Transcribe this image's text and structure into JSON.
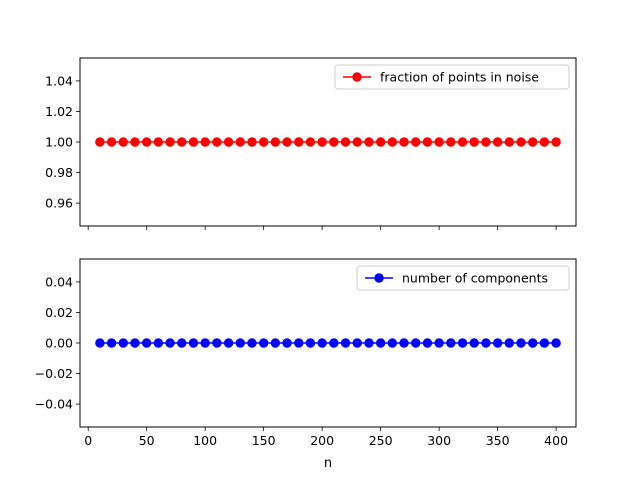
{
  "chart_data": {
    "type": "line",
    "x": [
      10,
      20,
      30,
      40,
      50,
      60,
      70,
      80,
      90,
      100,
      110,
      120,
      130,
      140,
      150,
      160,
      170,
      180,
      190,
      200,
      210,
      220,
      230,
      240,
      250,
      260,
      270,
      280,
      290,
      300,
      310,
      320,
      330,
      340,
      350,
      360,
      370,
      380,
      390,
      400
    ],
    "xlabel": "n",
    "xlim": [
      -7,
      417
    ],
    "xticks": [
      0,
      50,
      100,
      150,
      200,
      250,
      300,
      350,
      400
    ],
    "xtick_labels": [
      "0",
      "50",
      "100",
      "150",
      "200",
      "250",
      "300",
      "350",
      "400"
    ],
    "subplots": [
      {
        "series": [
          {
            "name": "fraction of points in noise",
            "color": "#ff0000",
            "marker": "circle",
            "values": [
              1,
              1,
              1,
              1,
              1,
              1,
              1,
              1,
              1,
              1,
              1,
              1,
              1,
              1,
              1,
              1,
              1,
              1,
              1,
              1,
              1,
              1,
              1,
              1,
              1,
              1,
              1,
              1,
              1,
              1,
              1,
              1,
              1,
              1,
              1,
              1,
              1,
              1,
              1,
              1
            ]
          }
        ],
        "ylim": [
          0.945,
          1.055
        ],
        "yticks": [
          0.96,
          0.98,
          1.0,
          1.02,
          1.04
        ],
        "ytick_labels": [
          "0.96",
          "0.98",
          "1.00",
          "1.02",
          "1.04"
        ],
        "legend": "top-right",
        "show_xtick_labels": false
      },
      {
        "series": [
          {
            "name": "number of components",
            "color": "#0000ff",
            "marker": "circle",
            "values": [
              0,
              0,
              0,
              0,
              0,
              0,
              0,
              0,
              0,
              0,
              0,
              0,
              0,
              0,
              0,
              0,
              0,
              0,
              0,
              0,
              0,
              0,
              0,
              0,
              0,
              0,
              0,
              0,
              0,
              0,
              0,
              0,
              0,
              0,
              0,
              0,
              0,
              0,
              0,
              0
            ]
          }
        ],
        "ylim": [
          -0.055,
          0.055
        ],
        "yticks": [
          -0.04,
          -0.02,
          0.0,
          0.02,
          0.04
        ],
        "ytick_labels": [
          "−0.04",
          "−0.02",
          "0.00",
          "0.02",
          "0.04"
        ],
        "legend": "top-right",
        "show_xtick_labels": true
      }
    ],
    "grid": false
  }
}
